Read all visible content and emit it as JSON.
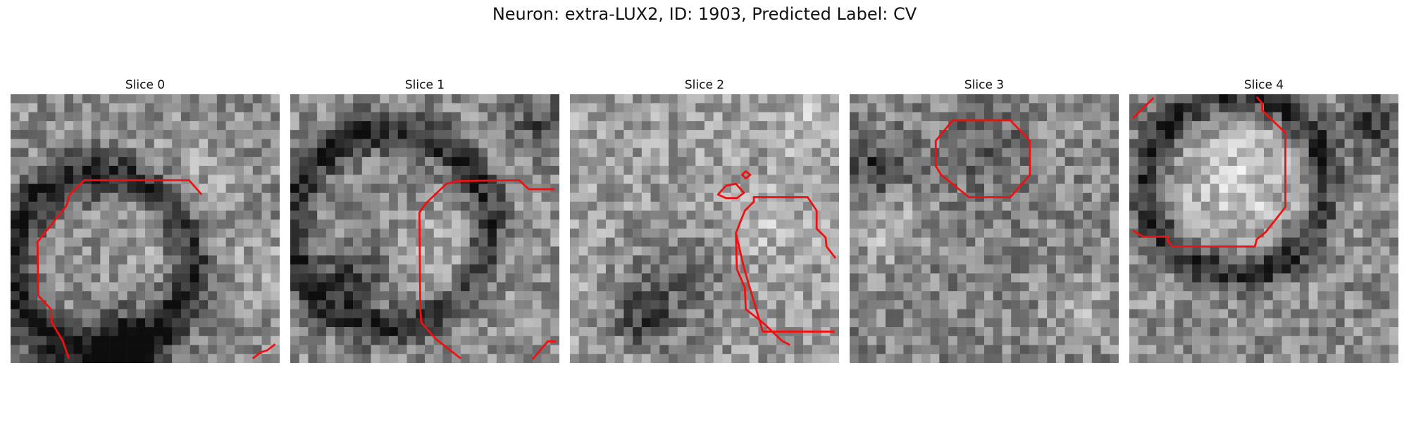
{
  "figure": {
    "title": "Neuron: extra-LUX2, ID: 1903, Predicted Label: CV"
  },
  "panels": [
    {
      "title": "Slice 0"
    },
    {
      "title": "Slice 1"
    },
    {
      "title": "Slice 2"
    },
    {
      "title": "Slice 3"
    },
    {
      "title": "Slice 4"
    }
  ],
  "contour_color": "#ee1111"
}
